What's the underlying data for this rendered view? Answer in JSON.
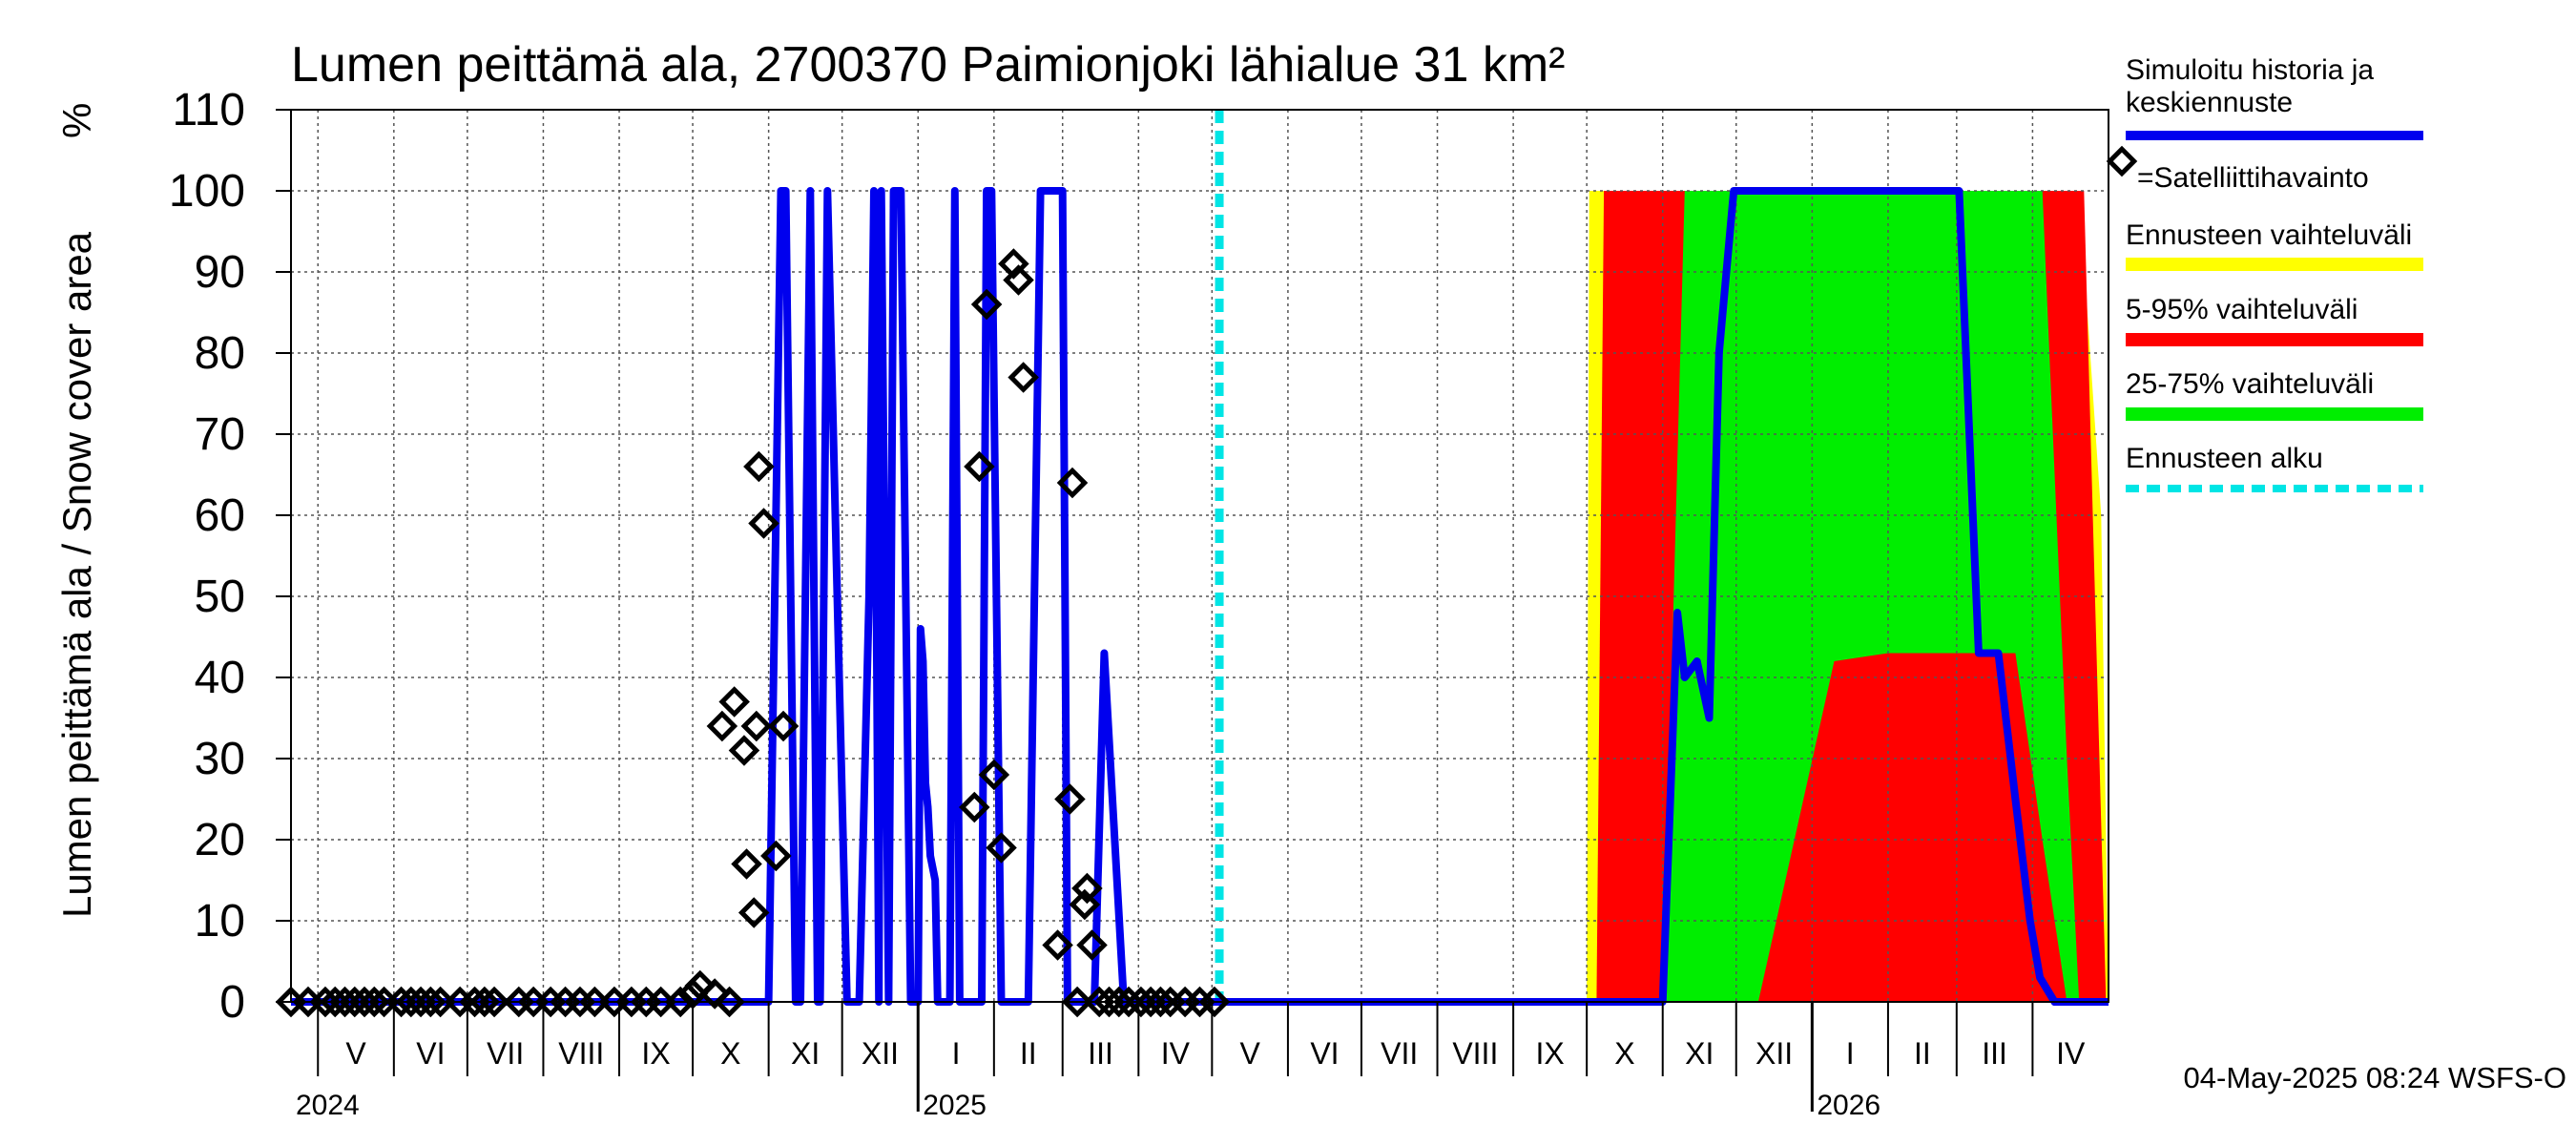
{
  "chart_data": {
    "type": "area",
    "title": "Lumen peittämä ala, 2700370 Paimionjoki lähialue 31 km²",
    "ylabel": "Lumen peittämä ala / Snow cover area",
    "yunit": "%",
    "ylim": [
      0,
      110
    ],
    "yticks": [
      0,
      10,
      20,
      30,
      40,
      50,
      60,
      70,
      80,
      90,
      100,
      110
    ],
    "xlim": [
      "2024-04-20",
      "2026-05-02"
    ],
    "grid": true,
    "legend_position": "right",
    "x_months": [
      {
        "label": "V",
        "start": "2024-05-01"
      },
      {
        "label": "VI",
        "start": "2024-06-01"
      },
      {
        "label": "VII",
        "start": "2024-07-01"
      },
      {
        "label": "VIII",
        "start": "2024-08-01"
      },
      {
        "label": "IX",
        "start": "2024-09-01"
      },
      {
        "label": "X",
        "start": "2024-10-01"
      },
      {
        "label": "XI",
        "start": "2024-11-01"
      },
      {
        "label": "XII",
        "start": "2024-12-01"
      },
      {
        "label": "I",
        "start": "2025-01-01"
      },
      {
        "label": "II",
        "start": "2025-02-01"
      },
      {
        "label": "III",
        "start": "2025-03-01"
      },
      {
        "label": "IV",
        "start": "2025-04-01"
      },
      {
        "label": "V",
        "start": "2025-05-01"
      },
      {
        "label": "VI",
        "start": "2025-06-01"
      },
      {
        "label": "VII",
        "start": "2025-07-01"
      },
      {
        "label": "VIII",
        "start": "2025-08-01"
      },
      {
        "label": "IX",
        "start": "2025-09-01"
      },
      {
        "label": "X",
        "start": "2025-10-01"
      },
      {
        "label": "XI",
        "start": "2025-11-01"
      },
      {
        "label": "XII",
        "start": "2025-12-01"
      },
      {
        "label": "I",
        "start": "2026-01-01"
      },
      {
        "label": "II",
        "start": "2026-02-01"
      },
      {
        "label": "III",
        "start": "2026-03-01"
      },
      {
        "label": "IV",
        "start": "2026-04-01"
      }
    ],
    "x_years": [
      {
        "label": "2024",
        "date": "2024-04-20"
      },
      {
        "label": "2025",
        "date": "2025-01-01"
      },
      {
        "label": "2026",
        "date": "2026-01-01"
      }
    ],
    "forecast_start": "2025-05-04",
    "series": [
      {
        "name": "Simuloitu historia ja keskiennuste",
        "color": "#0000ee",
        "x": [
          "2024-04-20",
          "2024-11-01",
          "2024-11-06",
          "2024-11-08",
          "2024-11-12",
          "2024-11-14",
          "2024-11-18",
          "2024-11-21",
          "2024-11-22",
          "2024-11-25",
          "2024-12-03",
          "2024-12-07",
          "2024-12-08",
          "2024-12-12",
          "2024-12-14",
          "2024-12-16",
          "2024-12-17",
          "2024-12-20",
          "2024-12-22",
          "2024-12-25",
          "2024-12-29",
          "2025-01-01",
          "2025-01-02",
          "2025-01-03",
          "2025-01-04",
          "2025-01-05",
          "2025-01-06",
          "2025-01-08",
          "2025-01-09",
          "2025-01-10",
          "2025-01-12",
          "2025-01-14",
          "2025-01-16",
          "2025-01-18",
          "2025-01-22",
          "2025-01-25",
          "2025-01-27",
          "2025-01-29",
          "2025-01-31",
          "2025-02-04",
          "2025-02-11",
          "2025-02-13",
          "2025-02-15",
          "2025-02-20",
          "2025-03-01",
          "2025-03-03",
          "2025-03-05",
          "2025-03-06",
          "2025-03-08",
          "2025-03-10",
          "2025-03-14",
          "2025-03-18",
          "2025-03-26",
          "2025-03-27",
          "2025-03-29",
          "2025-04-01",
          "2025-05-04",
          "2025-10-15",
          "2025-11-01",
          "2025-11-07",
          "2025-11-10",
          "2025-11-15",
          "2025-11-20",
          "2025-11-24",
          "2025-11-30",
          "2025-12-04",
          "2025-12-06",
          "2025-12-09",
          "2026-01-15",
          "2026-02-20",
          "2026-03-02",
          "2026-03-10",
          "2026-03-15",
          "2026-03-18",
          "2026-03-25",
          "2026-03-31",
          "2026-04-04",
          "2026-04-10",
          "2026-04-17",
          "2026-04-20",
          "2026-05-02"
        ],
        "y": [
          0,
          0,
          100,
          100,
          0,
          0,
          100,
          0,
          0,
          100,
          0,
          0,
          0,
          50,
          100,
          0,
          100,
          0,
          100,
          100,
          0,
          0,
          46,
          42,
          27,
          24,
          18,
          15,
          0,
          0,
          0,
          0,
          100,
          0,
          0,
          0,
          0,
          100,
          100,
          0,
          0,
          0,
          0,
          100,
          100,
          0,
          0,
          0,
          0,
          0,
          0,
          43,
          0,
          0,
          0,
          0,
          0,
          0,
          0,
          48,
          40,
          42,
          35,
          80,
          100,
          100,
          100,
          100,
          100,
          100,
          100,
          43,
          43,
          43,
          25,
          10,
          3,
          0,
          0,
          0,
          0
        ]
      },
      {
        "name": "Ennusteen vaihteluväli",
        "color": "#ffff00",
        "x": [
          "2025-10-01",
          "2025-10-02",
          "2026-04-20",
          "2026-04-29",
          "2026-05-02"
        ],
        "lower": [
          0,
          0,
          0,
          0,
          0
        ],
        "upper": [
          0,
          100,
          100,
          60,
          0
        ]
      },
      {
        "name": "5-95% vaihteluväli",
        "color": "#ff0000",
        "x": [
          "2025-10-05",
          "2025-10-08",
          "2026-01-01",
          "2026-02-10",
          "2026-02-20",
          "2026-03-20",
          "2026-04-10",
          "2026-04-22",
          "2026-05-01"
        ],
        "lower": [
          0,
          0,
          0,
          0,
          0,
          0,
          0,
          0,
          0
        ],
        "upper": [
          0,
          100,
          100,
          100,
          100,
          100,
          100,
          100,
          0
        ]
      },
      {
        "name": "25-75% vaihteluväli",
        "color": "#00ee00",
        "x": [
          "2025-11-01",
          "2025-11-10",
          "2025-12-01",
          "2025-12-10",
          "2026-01-10",
          "2026-02-01",
          "2026-02-20",
          "2026-03-05",
          "2026-03-15",
          "2026-03-25",
          "2026-04-05",
          "2026-04-15",
          "2026-04-20"
        ],
        "lower": [
          0,
          0,
          0,
          0,
          42,
          43,
          43,
          43,
          43,
          43,
          20,
          0,
          0
        ],
        "upper": [
          0,
          100,
          100,
          100,
          100,
          100,
          100,
          100,
          100,
          100,
          100,
          30,
          0
        ]
      },
      {
        "name": "=Satelliittihavainto",
        "color": "#000000",
        "points": [
          [
            "2024-04-20",
            0
          ],
          [
            "2024-04-27",
            0
          ],
          [
            "2024-05-04",
            0
          ],
          [
            "2024-05-08",
            0
          ],
          [
            "2024-05-12",
            0
          ],
          [
            "2024-05-16",
            0
          ],
          [
            "2024-05-20",
            0
          ],
          [
            "2024-05-24",
            0
          ],
          [
            "2024-05-28",
            0
          ],
          [
            "2024-06-04",
            0
          ],
          [
            "2024-06-08",
            0
          ],
          [
            "2024-06-12",
            0
          ],
          [
            "2024-06-16",
            0
          ],
          [
            "2024-06-20",
            0
          ],
          [
            "2024-06-28",
            0
          ],
          [
            "2024-07-04",
            0
          ],
          [
            "2024-07-08",
            0
          ],
          [
            "2024-07-12",
            0
          ],
          [
            "2024-07-22",
            0
          ],
          [
            "2024-07-28",
            0
          ],
          [
            "2024-08-04",
            0
          ],
          [
            "2024-08-10",
            0
          ],
          [
            "2024-08-16",
            0
          ],
          [
            "2024-08-22",
            0
          ],
          [
            "2024-08-30",
            0
          ],
          [
            "2024-09-06",
            0
          ],
          [
            "2024-09-12",
            0
          ],
          [
            "2024-09-18",
            0
          ],
          [
            "2024-09-26",
            0
          ],
          [
            "2024-10-01",
            1
          ],
          [
            "2024-10-04",
            2
          ],
          [
            "2024-10-10",
            1
          ],
          [
            "2024-10-16",
            0
          ],
          [
            "2024-10-13",
            34
          ],
          [
            "2024-10-18",
            37
          ],
          [
            "2024-10-22",
            31
          ],
          [
            "2024-10-23",
            17
          ],
          [
            "2024-10-26",
            11
          ],
          [
            "2024-10-27",
            34
          ],
          [
            "2024-10-28",
            66
          ],
          [
            "2024-10-30",
            59
          ],
          [
            "2024-11-04",
            18
          ],
          [
            "2024-11-07",
            34
          ],
          [
            "2025-01-24",
            24
          ],
          [
            "2025-01-26",
            66
          ],
          [
            "2025-01-29",
            86
          ],
          [
            "2025-02-01",
            28
          ],
          [
            "2025-02-04",
            19
          ],
          [
            "2025-02-09",
            91
          ],
          [
            "2025-02-11",
            89
          ],
          [
            "2025-02-13",
            77
          ],
          [
            "2025-02-27",
            7
          ],
          [
            "2025-03-04",
            25
          ],
          [
            "2025-03-05",
            64
          ],
          [
            "2025-03-07",
            0
          ],
          [
            "2025-03-10",
            12
          ],
          [
            "2025-03-11",
            14
          ],
          [
            "2025-03-13",
            7
          ],
          [
            "2025-03-16",
            0
          ],
          [
            "2025-03-20",
            0
          ],
          [
            "2025-03-24",
            0
          ],
          [
            "2025-03-28",
            0
          ],
          [
            "2025-04-02",
            0
          ],
          [
            "2025-04-06",
            0
          ],
          [
            "2025-04-10",
            0
          ],
          [
            "2025-04-14",
            0
          ],
          [
            "2025-04-20",
            0
          ],
          [
            "2025-04-26",
            0
          ],
          [
            "2025-05-02",
            0
          ]
        ]
      },
      {
        "name": "Ennusteen alku",
        "color": "#00e5e5"
      }
    ]
  },
  "legend": {
    "line1": "Simuloitu historia ja",
    "line2": "keskiennuste",
    "satellite": "=Satelliittihavainto",
    "envelope": "Ennusteen vaihteluväli",
    "p5_95": "5-95% vaihteluväli",
    "p25_75": "25-75% vaihteluväli",
    "forecast_start": "Ennusteen alku"
  },
  "footer": {
    "timestamp": "04-May-2025 08:24 WSFS-O"
  }
}
